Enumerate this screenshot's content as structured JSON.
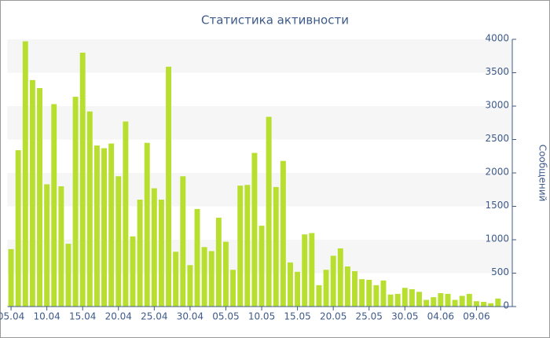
{
  "chart_data": {
    "type": "bar",
    "title": "Статистика активности",
    "y_label": "Сообщений",
    "categories": [
      "05.04",
      null,
      null,
      null,
      null,
      "10.04",
      null,
      null,
      null,
      null,
      "15.04",
      null,
      null,
      null,
      null,
      "20.04",
      null,
      null,
      null,
      null,
      "25.04",
      null,
      null,
      null,
      null,
      "30.04",
      null,
      null,
      null,
      null,
      "05.05",
      null,
      null,
      null,
      null,
      "10.05",
      null,
      null,
      null,
      null,
      "15.05",
      null,
      null,
      null,
      null,
      "20.05",
      null,
      null,
      null,
      null,
      "25.05",
      null,
      null,
      null,
      null,
      "30.05",
      null,
      null,
      null,
      null,
      "04.06",
      null,
      null,
      null,
      null,
      "09.06",
      null,
      null,
      null
    ],
    "values": [
      860,
      2340,
      3970,
      3390,
      3270,
      1830,
      3030,
      1800,
      940,
      3140,
      3800,
      2920,
      2410,
      2370,
      2440,
      1950,
      2770,
      1050,
      1600,
      2450,
      1770,
      1600,
      3590,
      820,
      1950,
      620,
      1460,
      890,
      830,
      1330,
      970,
      550,
      1810,
      1820,
      2300,
      1210,
      2840,
      1790,
      2180,
      660,
      520,
      1080,
      1100,
      320,
      550,
      760,
      870,
      600,
      530,
      410,
      400,
      320,
      390,
      180,
      190,
      280,
      260,
      220,
      100,
      140,
      200,
      190,
      100,
      160,
      190,
      80,
      70,
      50,
      120
    ],
    "color": "#b8df2f",
    "ylim": [
      0,
      4000
    ],
    "yticks": [
      0,
      500,
      1000,
      1500,
      2000,
      2500,
      3000,
      3500,
      4000
    ],
    "grid": "bands"
  }
}
